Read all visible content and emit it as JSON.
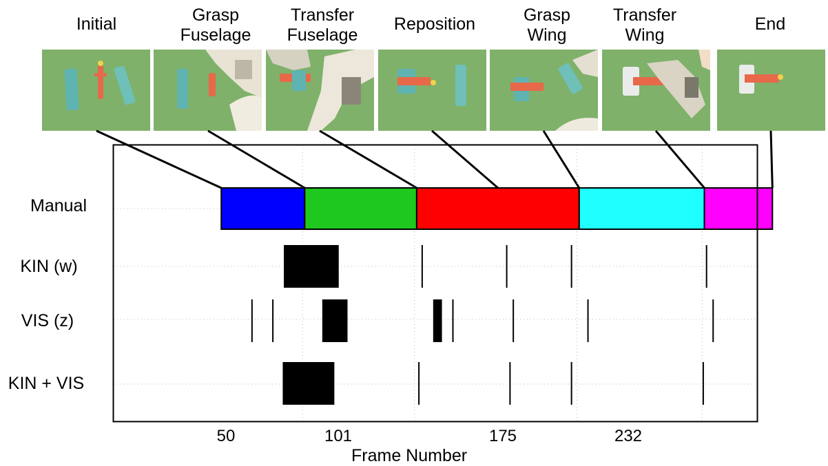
{
  "chart_data": {
    "type": "segmentation-timeline",
    "xlabel": "Frame Number",
    "xticks": [
      50,
      101,
      175,
      232
    ],
    "rows": [
      "Manual",
      "KIN (w)",
      "VIS (z)",
      "KIN + VIS"
    ],
    "stages": [
      {
        "label": "Initial"
      },
      {
        "label": "Grasp\nFuselage"
      },
      {
        "label": "Transfer\nFuselage"
      },
      {
        "label": "Reposition"
      },
      {
        "label": "Grasp\nWing"
      },
      {
        "label": "Transfer\nWing"
      },
      {
        "label": "End"
      }
    ],
    "manual_segments": [
      {
        "start": 13,
        "end": 51,
        "color": "#0000ff"
      },
      {
        "start": 51,
        "end": 102,
        "color": "#1ec81e"
      },
      {
        "start": 102,
        "end": 176,
        "color": "#ff0000"
      },
      {
        "start": 176,
        "end": 233,
        "color": "#1fffff"
      },
      {
        "start": 233,
        "end": 264,
        "color": "#ff00ff"
      }
    ],
    "kin_w": {
      "blocks": [
        [
          41.5,
          66.5
        ]
      ],
      "lines": [
        104.5,
        143,
        172.5,
        234
      ]
    },
    "vis_z": {
      "blocks": [
        [
          59,
          70.5
        ],
        [
          109.5,
          113.5
        ]
      ],
      "lines": [
        27,
        36.5,
        118.5,
        146,
        180,
        237
      ]
    },
    "kin_vis": {
      "blocks": [
        [
          41,
          64.5
        ]
      ],
      "lines": [
        103,
        144.5,
        172.5,
        232.5
      ]
    },
    "xlim": [
      -36,
      257
    ]
  }
}
